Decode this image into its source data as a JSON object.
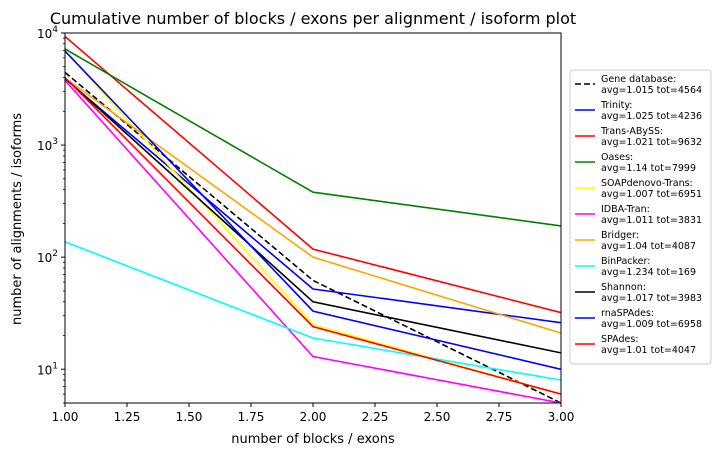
{
  "chart_data": {
    "type": "line",
    "title": "Cumulative number of blocks / exons per alignment / isoform plot",
    "xlabel": "number of blocks / exons",
    "ylabel": "number of alignments / isoforms",
    "xlim": [
      1.0,
      3.0
    ],
    "ylim": [
      5,
      10000
    ],
    "y_scale": "log",
    "grid": false,
    "legend_position": "right",
    "x_ticks": [
      "1.00",
      "1.25",
      "1.50",
      "1.75",
      "2.00",
      "2.25",
      "2.50",
      "2.75",
      "3.00"
    ],
    "x_tick_values": [
      1.0,
      1.25,
      1.5,
      1.75,
      2.0,
      2.25,
      2.5,
      2.75,
      3.0
    ],
    "x": [
      1,
      2,
      3
    ],
    "series": [
      {
        "name": "Gene database:",
        "stats": "avg=1.015 tot=4564",
        "color": "#000000",
        "dashed": true,
        "values": [
          4450,
          62,
          5
        ]
      },
      {
        "name": "Trinity:",
        "stats": "avg=1.025 tot=4236",
        "color": "#0000ff",
        "values": [
          3900,
          52,
          26
        ]
      },
      {
        "name": "Trans-ABySS:",
        "stats": "avg=1.021 tot=9632",
        "color": "#ff0000",
        "values": [
          9300,
          118,
          32
        ]
      },
      {
        "name": "Oases:",
        "stats": "avg=1.14 tot=7999",
        "color": "#008000",
        "values": [
          7200,
          380,
          190
        ]
      },
      {
        "name": "SOAPdenovo-Trans:",
        "stats": "avg=1.007 tot=6951",
        "color": "#ffff00",
        "values": [
          6900,
          25,
          6
        ]
      },
      {
        "name": "IDBA-Tran:",
        "stats": "avg=1.011 tot=3831",
        "color": "#ff00ff",
        "values": [
          3780,
          13,
          5
        ]
      },
      {
        "name": "Bridger:",
        "stats": "avg=1.04 tot=4087",
        "color": "#ffa500",
        "values": [
          3950,
          100,
          21
        ]
      },
      {
        "name": "BinPacker:",
        "stats": "avg=1.234 tot=169",
        "color": "#00ffff",
        "values": [
          137,
          19,
          8
        ]
      },
      {
        "name": "Shannon:",
        "stats": "avg=1.017 tot=3983",
        "color": "#000000",
        "values": [
          3950,
          40,
          14
        ]
      },
      {
        "name": "rnaSPAdes:",
        "stats": "avg=1.009 tot=6958",
        "color": "#0000ff",
        "values": [
          6900,
          33,
          10
        ]
      },
      {
        "name": "SPAdes:",
        "stats": "avg=1.01 tot=4047",
        "color": "#ff0000",
        "values": [
          4000,
          24,
          6
        ]
      }
    ]
  }
}
